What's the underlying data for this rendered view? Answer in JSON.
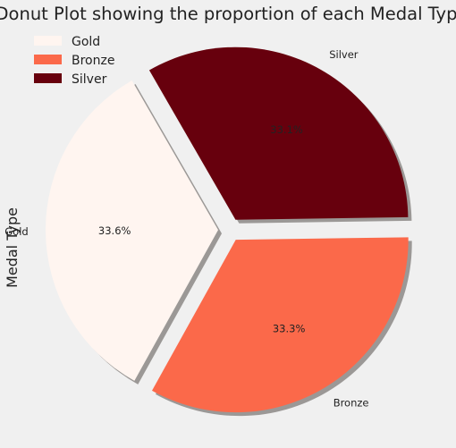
{
  "chart_data": {
    "type": "pie",
    "title": "Donut Plot showing the proportion of each Medal Type",
    "ylabel": "Medal Type",
    "legend_position": "top-left",
    "shadow": true,
    "exploded": true,
    "slices": [
      {
        "name": "Gold",
        "value": 33.6,
        "label": "33.6%",
        "color": "#fff5f0"
      },
      {
        "name": "Bronze",
        "value": 33.3,
        "label": "33.3%",
        "color": "#fb694a"
      },
      {
        "name": "Silver",
        "value": 33.1,
        "label": "33.1%",
        "color": "#67000d"
      }
    ],
    "legend": [
      "Gold",
      "Bronze",
      "Silver"
    ]
  }
}
